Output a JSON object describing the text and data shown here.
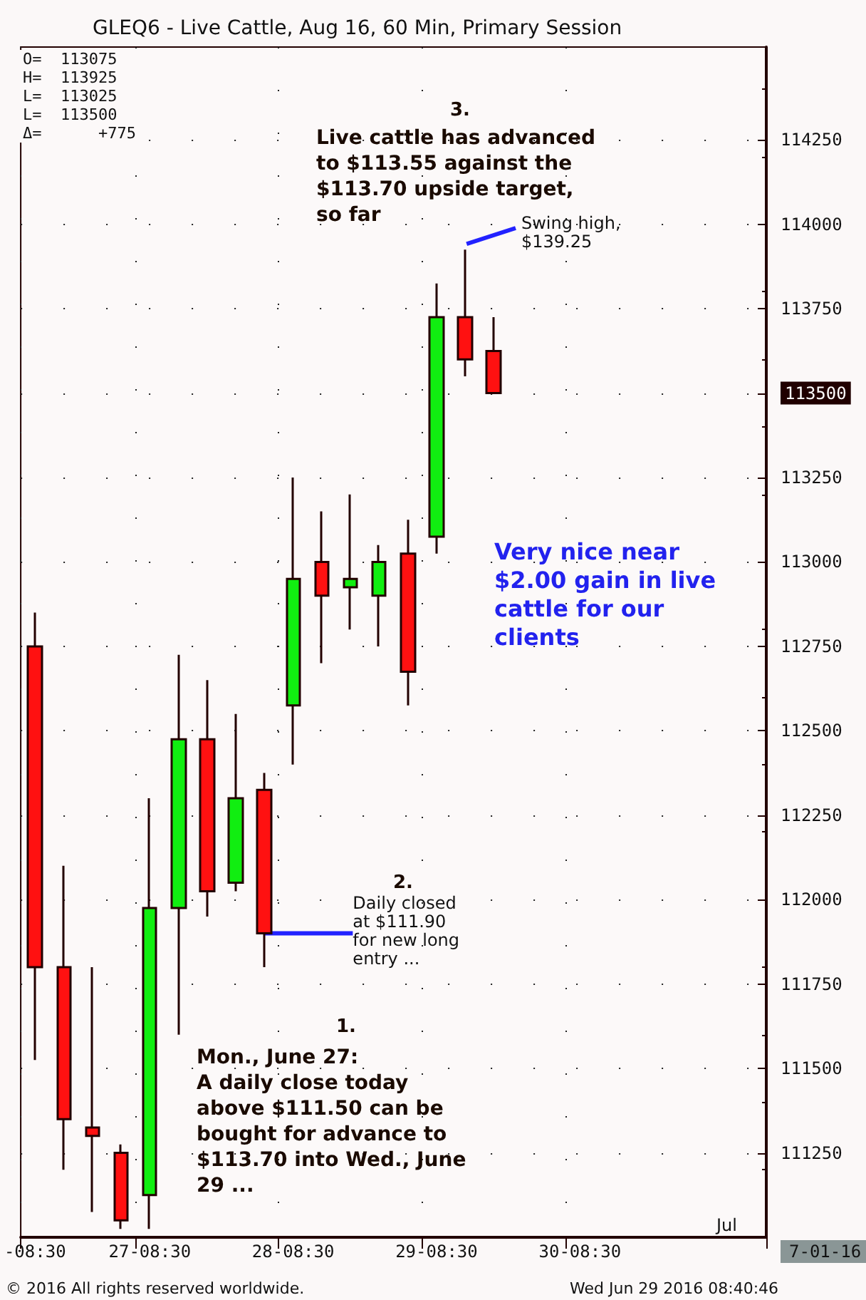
{
  "chart_data": {
    "type": "candlestick",
    "title": "GLEQ6 - Live Cattle, Aug 16, 60 Min, Primary Session",
    "categories": [
      "-08:30",
      null,
      null,
      null,
      "27-08:30",
      null,
      null,
      null,
      null,
      "28-08:30",
      null,
      null,
      null,
      null,
      "29-08:30",
      null,
      null,
      null,
      null,
      "30-08:30",
      null,
      null,
      null,
      null,
      null,
      null
    ],
    "ohlc": [
      [
        112750,
        112850,
        111525,
        111800
      ],
      [
        111800,
        112100,
        111200,
        111350
      ],
      [
        111325,
        111800,
        111075,
        111300
      ],
      [
        111250,
        111275,
        111025,
        111050
      ],
      [
        111125,
        112300,
        111025,
        111975
      ],
      [
        111975,
        112725,
        111600,
        112475
      ],
      [
        112475,
        112650,
        111950,
        112025
      ],
      [
        112050,
        112550,
        112025,
        112300
      ],
      [
        112325,
        112375,
        111800,
        111900
      ],
      [
        112575,
        113250,
        112400,
        112950
      ],
      [
        113000,
        113150,
        112700,
        112900
      ],
      [
        112925,
        113200,
        112800,
        112950
      ],
      [
        112900,
        113050,
        112750,
        113000
      ],
      [
        113025,
        113125,
        112575,
        112675
      ],
      [
        113075,
        113825,
        113025,
        113725
      ],
      [
        113725,
        113925,
        113550,
        113600
      ],
      [
        113625,
        113725,
        113500,
        113500
      ],
      null,
      null,
      null,
      null,
      null,
      null,
      null,
      null,
      null
    ],
    "ylim": [
      111000,
      114525
    ],
    "yticks": [
      111250,
      111500,
      111750,
      112000,
      112250,
      112500,
      112750,
      113000,
      113250,
      113500,
      113750,
      114000,
      114250
    ],
    "grid": true,
    "ref_lines": [
      {
        "axis": "y",
        "value": 111900,
        "label": "Daily closed\nat $111.90\nfor new long\nentry ...",
        "color": "#2222ff"
      }
    ],
    "annotations": [
      "O=  113075\nH=  113925\nL=  113025\nL=  113500\nΔ=      +775",
      "3.",
      "Live cattle has advanced\nto $113.55 against the\n$113.70 upside target,\nso far",
      "Swing high,\n$139.25",
      "Very nice near\n$2.00 gain in live\ncattle for our\nclients",
      "2.",
      "1.",
      "Mon., June 27:\nA daily close today\nabove $111.50 can be\nbought for advance to\n$113.70 into Wed., June\n29 ...",
      "Jul",
      "7-01-16",
      "© 2016 All rights reserved worldwide.",
      "Wed Jun 29 2016 08:40:46"
    ]
  }
}
